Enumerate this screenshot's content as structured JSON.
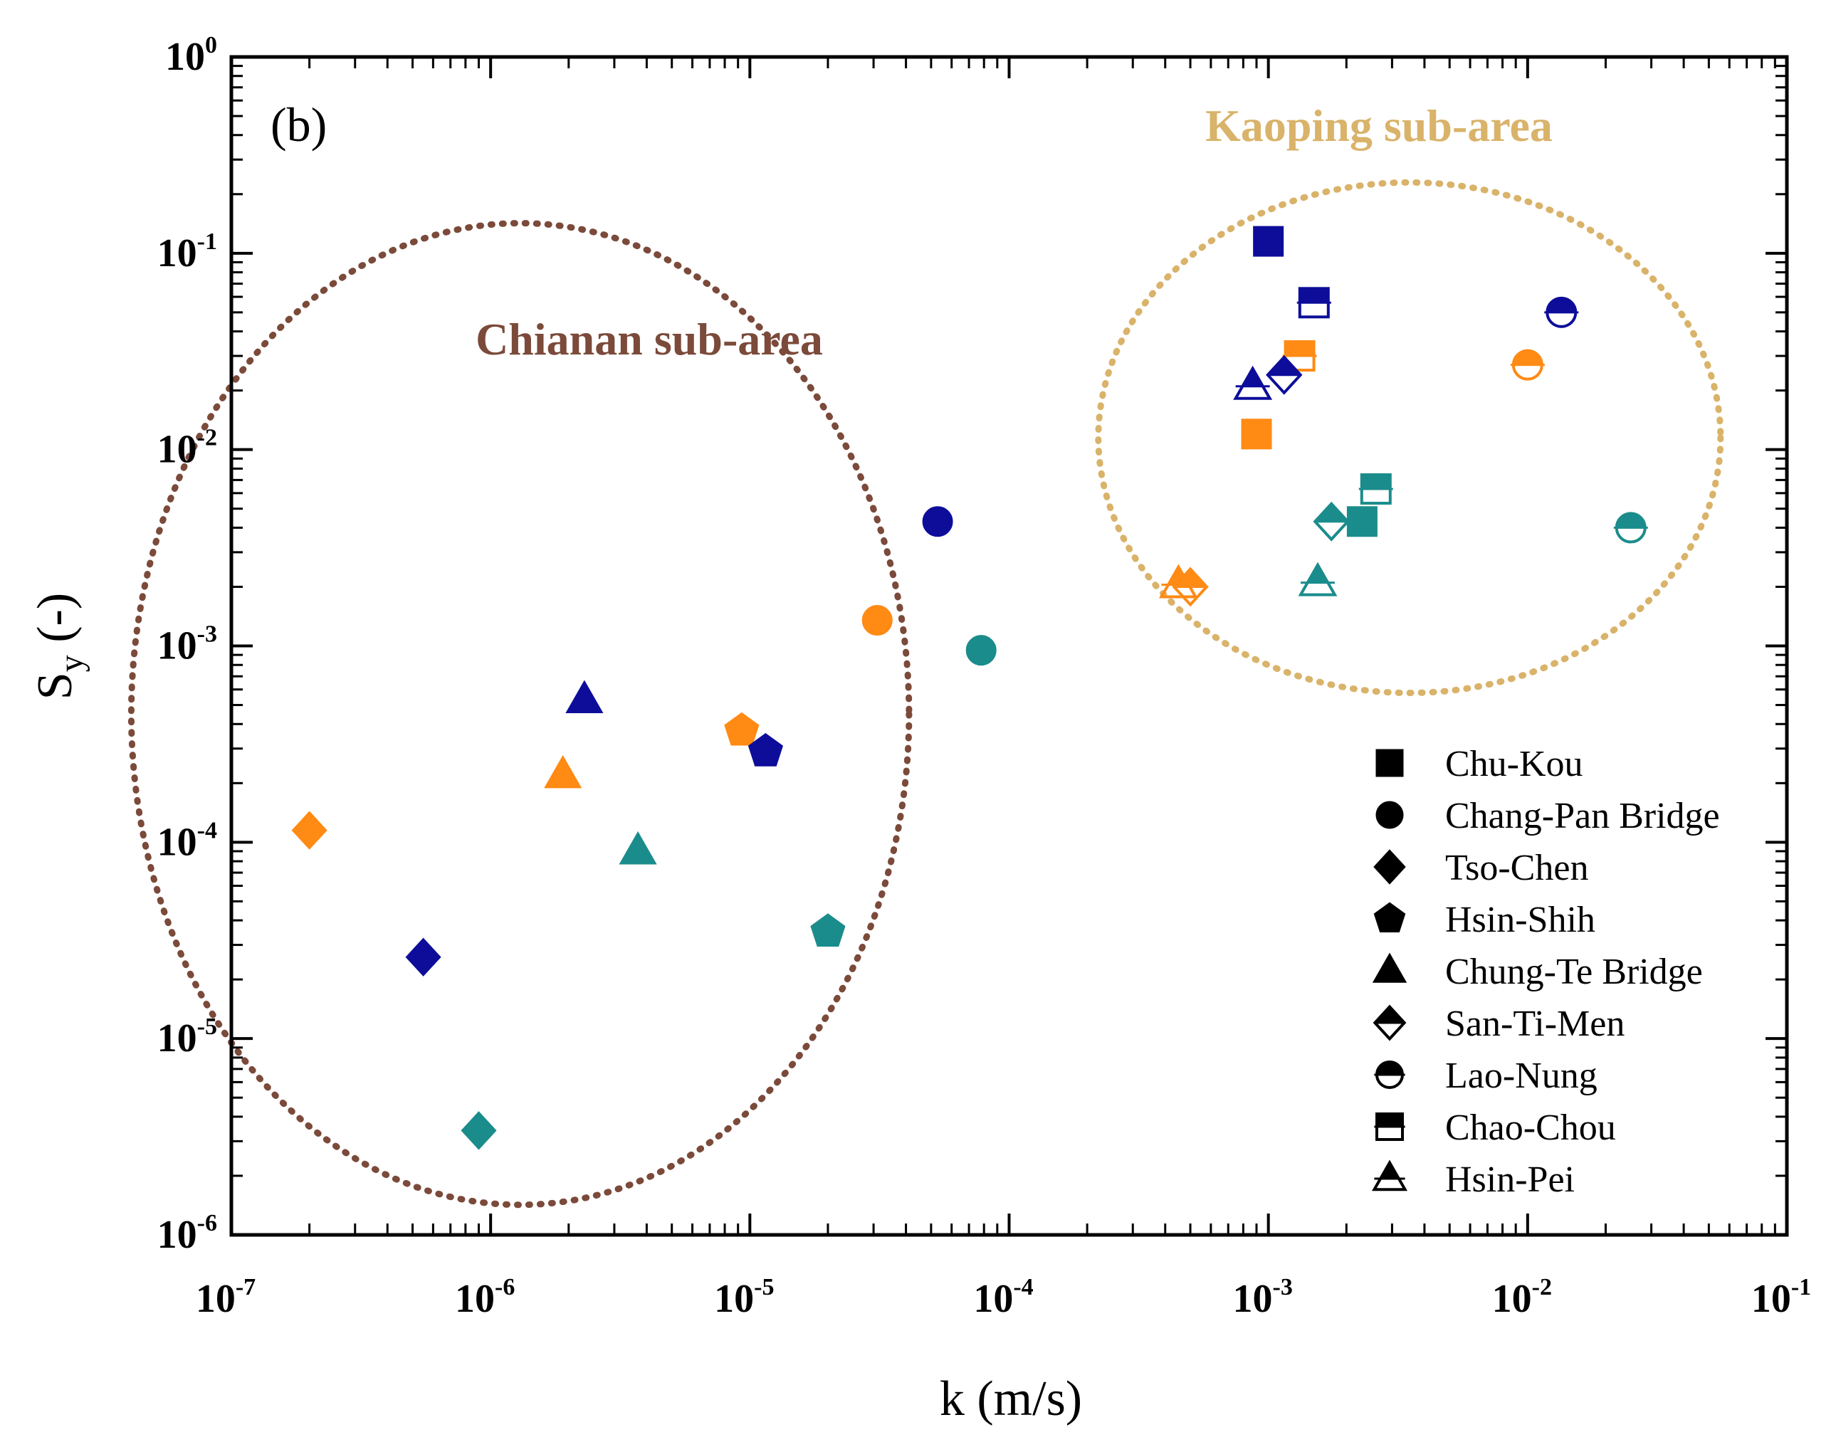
{
  "chart_data": {
    "type": "scatter",
    "panel_label": "(b)",
    "xlabel": "k (m/s)",
    "ylabel": "S",
    "ylabel_sub": "y",
    "ylabel_suffix": " (-)",
    "x_scale": "log",
    "y_scale": "log",
    "xlim_exp": [
      -7,
      -1
    ],
    "ylim_exp": [
      -6,
      0
    ],
    "x_ticks": [
      {
        "base": "10",
        "exp": "-7",
        "value": 1e-07
      },
      {
        "base": "10",
        "exp": "-6",
        "value": 1e-06
      },
      {
        "base": "10",
        "exp": "-5",
        "value": 1e-05
      },
      {
        "base": "10",
        "exp": "-4",
        "value": 0.0001
      },
      {
        "base": "10",
        "exp": "-3",
        "value": 0.001
      },
      {
        "base": "10",
        "exp": "-2",
        "value": 0.01
      },
      {
        "base": "10",
        "exp": "-1",
        "value": 0.1
      }
    ],
    "y_ticks": [
      {
        "base": "10",
        "exp": "0",
        "value": 1
      },
      {
        "base": "10",
        "exp": "-1",
        "value": 0.1
      },
      {
        "base": "10",
        "exp": "-2",
        "value": 0.01
      },
      {
        "base": "10",
        "exp": "-3",
        "value": 0.001
      },
      {
        "base": "10",
        "exp": "-4",
        "value": 0.0001
      },
      {
        "base": "10",
        "exp": "-5",
        "value": 1e-05
      },
      {
        "base": "10",
        "exp": "-6",
        "value": 1e-06
      }
    ],
    "colors": {
      "navy": "#0d0d9a",
      "orange": "#ff8a14",
      "teal": "#1b8c8c",
      "chianan": "#7b4a3a",
      "kaoping": "#d9b36a"
    },
    "groups": [
      {
        "name": "Chianan sub-area",
        "color": "#7b4a3a",
        "center_k": 1.3e-06,
        "center_sy": 0.00045,
        "span_k_decades": 1.5,
        "span_sy_decades": 2.5
      },
      {
        "name": "Kaoping sub-area",
        "color": "#d9b36a",
        "center_k": 0.0035,
        "center_sy": 0.0115,
        "span_k_decades": 1.2,
        "span_sy_decades": 1.3
      }
    ],
    "legend": [
      {
        "name": "Chu-Kou",
        "marker": "square",
        "fill": "full"
      },
      {
        "name": "Chang-Pan Bridge",
        "marker": "circle",
        "fill": "full"
      },
      {
        "name": "Tso-Chen",
        "marker": "diamond",
        "fill": "full"
      },
      {
        "name": "Hsin-Shih",
        "marker": "pentagon",
        "fill": "full"
      },
      {
        "name": "Chung-Te Bridge",
        "marker": "triangle",
        "fill": "full"
      },
      {
        "name": "San-Ti-Men",
        "marker": "diamond",
        "fill": "top"
      },
      {
        "name": "Lao-Nung",
        "marker": "circle",
        "fill": "top"
      },
      {
        "name": "Chao-Chou",
        "marker": "square",
        "fill": "top"
      },
      {
        "name": "Hsin-Pei",
        "marker": "triangle",
        "fill": "top"
      }
    ],
    "points": [
      {
        "station": "Tso-Chen",
        "marker": "diamond",
        "fill": "full",
        "color": "#ff8a14",
        "k": 2e-07,
        "sy": 0.000115
      },
      {
        "station": "Tso-Chen",
        "marker": "diamond",
        "fill": "full",
        "color": "#0d0d9a",
        "k": 5.5e-07,
        "sy": 2.6e-05
      },
      {
        "station": "Tso-Chen",
        "marker": "diamond",
        "fill": "full",
        "color": "#1b8c8c",
        "k": 9e-07,
        "sy": 3.4e-06
      },
      {
        "station": "Chung-Te Bridge",
        "marker": "triangle",
        "fill": "full",
        "color": "#ff8a14",
        "k": 1.9e-06,
        "sy": 0.00022
      },
      {
        "station": "Chung-Te Bridge",
        "marker": "triangle",
        "fill": "full",
        "color": "#0d0d9a",
        "k": 2.3e-06,
        "sy": 0.00053
      },
      {
        "station": "Chung-Te Bridge",
        "marker": "triangle",
        "fill": "full",
        "color": "#1b8c8c",
        "k": 3.7e-06,
        "sy": 9e-05
      },
      {
        "station": "Hsin-Shih",
        "marker": "pentagon",
        "fill": "full",
        "color": "#ff8a14",
        "k": 9.3e-06,
        "sy": 0.00037
      },
      {
        "station": "Hsin-Shih",
        "marker": "pentagon",
        "fill": "full",
        "color": "#0d0d9a",
        "k": 1.15e-05,
        "sy": 0.00029
      },
      {
        "station": "Hsin-Shih",
        "marker": "pentagon",
        "fill": "full",
        "color": "#1b8c8c",
        "k": 2e-05,
        "sy": 3.5e-05
      },
      {
        "station": "Chang-Pan Bridge",
        "marker": "circle",
        "fill": "full",
        "color": "#ff8a14",
        "k": 3.1e-05,
        "sy": 0.00135
      },
      {
        "station": "Chang-Pan Bridge",
        "marker": "circle",
        "fill": "full",
        "color": "#0d0d9a",
        "k": 5.3e-05,
        "sy": 0.0043
      },
      {
        "station": "Chang-Pan Bridge",
        "marker": "circle",
        "fill": "full",
        "color": "#1b8c8c",
        "k": 7.8e-05,
        "sy": 0.00095
      },
      {
        "station": "Chu-Kou",
        "marker": "square",
        "fill": "full",
        "color": "#0d0d9a",
        "k": 0.001,
        "sy": 0.115
      },
      {
        "station": "Chu-Kou",
        "marker": "square",
        "fill": "full",
        "color": "#ff8a14",
        "k": 0.0009,
        "sy": 0.012
      },
      {
        "station": "Chu-Kou",
        "marker": "square",
        "fill": "full",
        "color": "#1b8c8c",
        "k": 0.0023,
        "sy": 0.0043
      },
      {
        "station": "Chao-Chou",
        "marker": "square",
        "fill": "top",
        "color": "#0d0d9a",
        "k": 0.0015,
        "sy": 0.056
      },
      {
        "station": "Chao-Chou",
        "marker": "square",
        "fill": "top",
        "color": "#ff8a14",
        "k": 0.00132,
        "sy": 0.03
      },
      {
        "station": "Chao-Chou",
        "marker": "square",
        "fill": "top",
        "color": "#1b8c8c",
        "k": 0.0026,
        "sy": 0.0063
      },
      {
        "station": "Hsin-Pei",
        "marker": "triangle",
        "fill": "top",
        "color": "#0d0d9a",
        "k": 0.00087,
        "sy": 0.021
      },
      {
        "station": "Hsin-Pei",
        "marker": "triangle",
        "fill": "top",
        "color": "#ff8a14",
        "k": 0.00045,
        "sy": 0.00205
      },
      {
        "station": "Hsin-Pei",
        "marker": "triangle",
        "fill": "top",
        "color": "#1b8c8c",
        "k": 0.00155,
        "sy": 0.0021
      },
      {
        "station": "San-Ti-Men",
        "marker": "diamond",
        "fill": "top",
        "color": "#0d0d9a",
        "k": 0.00115,
        "sy": 0.024
      },
      {
        "station": "San-Ti-Men",
        "marker": "diamond",
        "fill": "top",
        "color": "#ff8a14",
        "k": 0.0005,
        "sy": 0.002
      },
      {
        "station": "San-Ti-Men",
        "marker": "diamond",
        "fill": "top",
        "color": "#1b8c8c",
        "k": 0.00175,
        "sy": 0.0043
      },
      {
        "station": "Lao-Nung",
        "marker": "circle",
        "fill": "top",
        "color": "#0d0d9a",
        "k": 0.0135,
        "sy": 0.05
      },
      {
        "station": "Lao-Nung",
        "marker": "circle",
        "fill": "top",
        "color": "#ff8a14",
        "k": 0.01,
        "sy": 0.027
      },
      {
        "station": "Lao-Nung",
        "marker": "circle",
        "fill": "top",
        "color": "#1b8c8c",
        "k": 0.025,
        "sy": 0.004
      }
    ]
  }
}
